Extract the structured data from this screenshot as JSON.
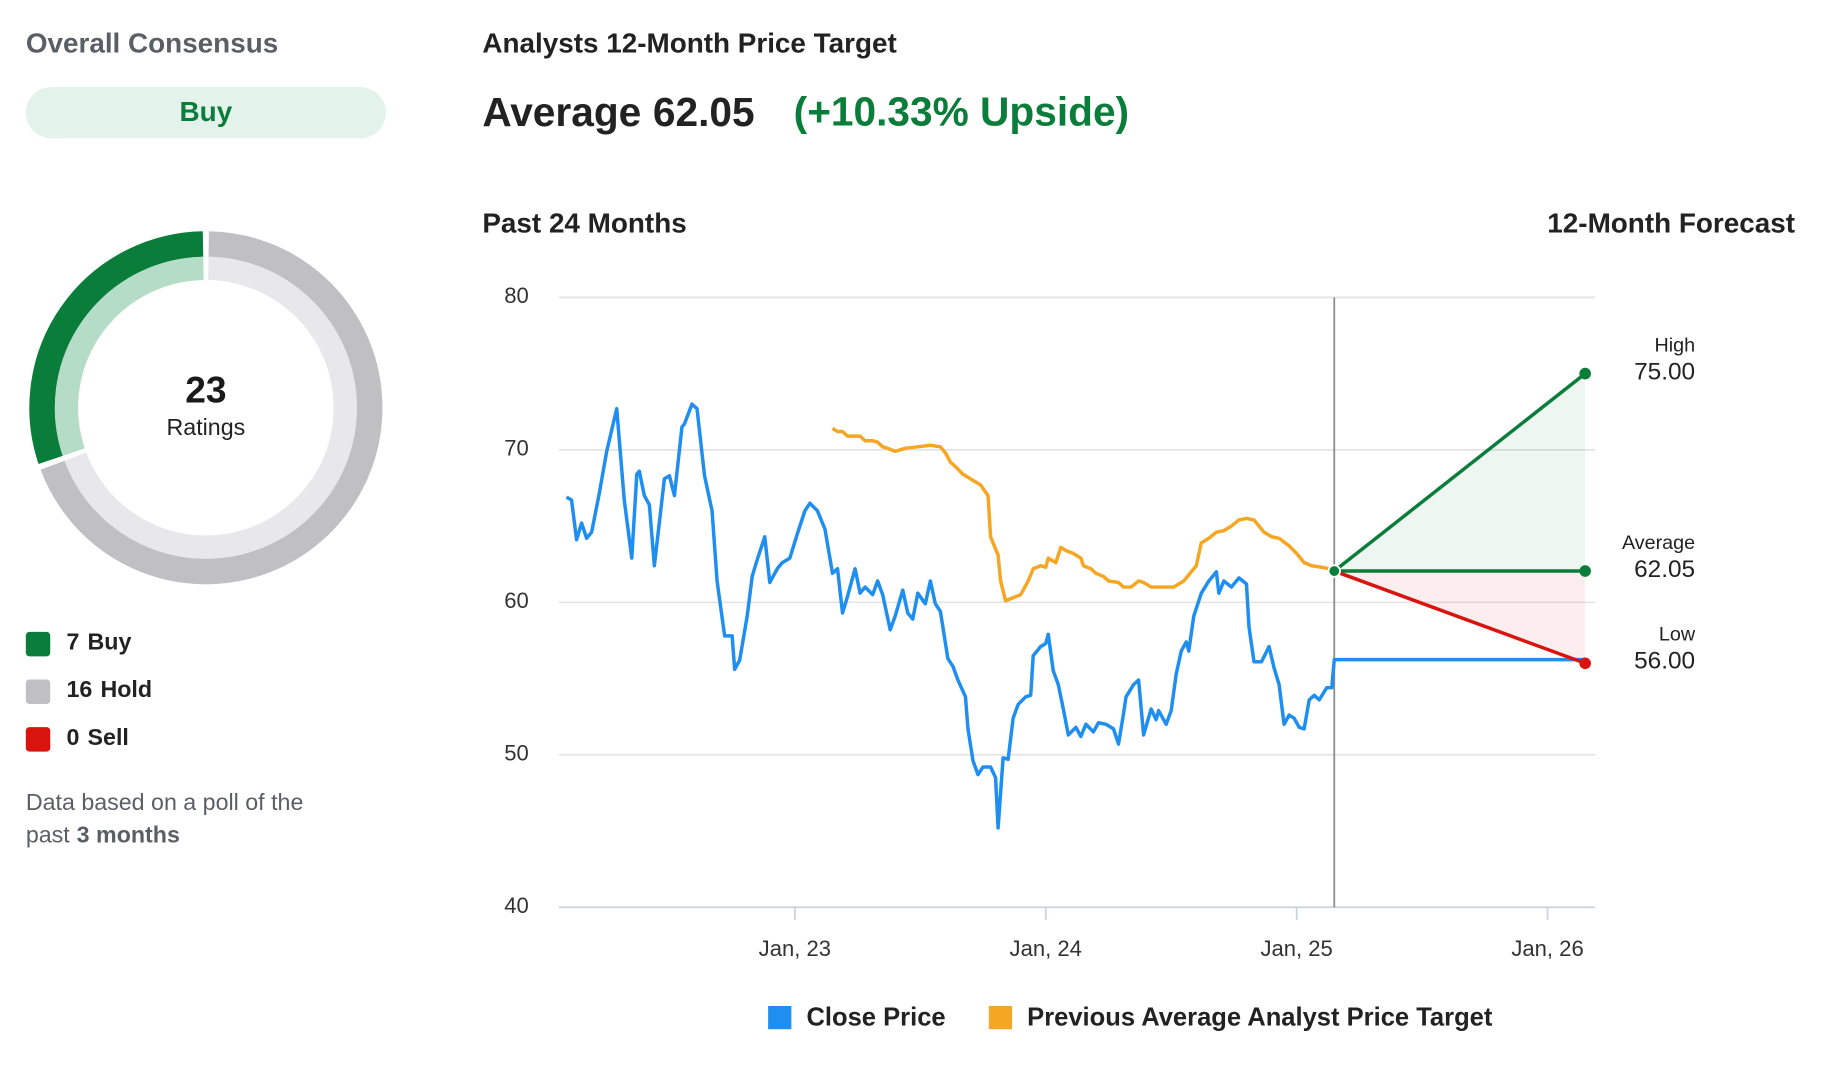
{
  "consensus": {
    "title": "Overall Consensus",
    "rating": "Buy",
    "total": 23,
    "total_label": "Ratings",
    "breakdown": [
      {
        "label": "Buy",
        "count": 7,
        "color": "#0b7d3b",
        "light": "#b5dcc6"
      },
      {
        "label": "Hold",
        "count": 16,
        "color": "#c0c0c3",
        "light": "#e8e8ea"
      },
      {
        "label": "Sell",
        "count": 0,
        "color": "#d9140e",
        "light": "#f5c0bd"
      }
    ],
    "note": [
      "Data based on a poll of the",
      "past"
    ],
    "note_period": "3 months"
  },
  "header": {
    "title": "Analysts 12-Month Price Target",
    "average_label": "Average",
    "average": 62.05,
    "upside": "(+10.33% Upside)"
  },
  "chart_data": {
    "type": "line",
    "left_label": "Past 24 Months",
    "right_label": "12-Month Forecast",
    "xlim": [
      2022.06,
      2026.19
    ],
    "ylim": [
      40,
      80
    ],
    "yticks": [
      40,
      50,
      60,
      70,
      80
    ],
    "grid": true,
    "xticks": [
      {
        "value": 2023,
        "label": "Jan, 23"
      },
      {
        "value": 2024,
        "label": "Jan, 24"
      },
      {
        "value": 2025,
        "label": "Jan, 25"
      },
      {
        "value": 2026,
        "label": "Jan, 26"
      }
    ],
    "series": [
      {
        "name": "Close Price",
        "color": "#1f8ef1",
        "x": [
          2022.09,
          2022.11,
          2022.13,
          2022.15,
          2022.17,
          2022.19,
          2022.22,
          2022.25,
          2022.29,
          2022.32,
          2022.35,
          2022.37,
          2022.38,
          2022.4,
          2022.42,
          2022.44,
          2022.48,
          2022.5,
          2022.52,
          2022.55,
          2022.56,
          2022.59,
          2022.61,
          2022.64,
          2022.67,
          2022.69,
          2022.72,
          2022.75,
          2022.76,
          2022.78,
          2022.81,
          2022.83,
          2022.85,
          2022.88,
          2022.9,
          2022.93,
          2022.95,
          2022.98,
          2023.01,
          2023.04,
          2023.06,
          2023.09,
          2023.12,
          2023.15,
          2023.17,
          2023.19,
          2023.21,
          2023.24,
          2023.26,
          2023.28,
          2023.31,
          2023.33,
          2023.35,
          2023.38,
          2023.4,
          2023.43,
          2023.45,
          2023.47,
          2023.49,
          2023.52,
          2023.54,
          2023.56,
          2023.58,
          2023.61,
          2023.63,
          2023.65,
          2023.68,
          2023.69,
          2023.71,
          2023.73,
          2023.75,
          2023.78,
          2023.8,
          2023.81,
          2023.83,
          2023.85,
          2023.87,
          2023.89,
          2023.92,
          2023.94,
          2023.95,
          2023.98,
          2024.0,
          2024.01,
          2024.03,
          2024.05,
          2024.07,
          2024.09,
          2024.12,
          2024.14,
          2024.16,
          2024.19,
          2024.21,
          2024.24,
          2024.27,
          2024.29,
          2024.31,
          2024.32,
          2024.35,
          2024.37,
          2024.39,
          2024.42,
          2024.44,
          2024.45,
          2024.48,
          2024.5,
          2024.52,
          2024.54,
          2024.56,
          2024.57,
          2024.59,
          2024.62,
          2024.65,
          2024.68,
          2024.69,
          2024.71,
          2024.74,
          2024.77,
          2024.8,
          2024.81,
          2024.83,
          2024.86,
          2024.89,
          2024.91,
          2024.93,
          2024.95,
          2024.97,
          2024.99,
          2025.01,
          2025.03,
          2025.05,
          2025.07,
          2025.09,
          2025.12,
          2025.14,
          2025.15,
          2026.15
        ],
        "values": [
          66.9,
          66.7,
          64.1,
          65.2,
          64.2,
          64.6,
          67.1,
          69.9,
          72.7,
          66.7,
          62.9,
          68.4,
          68.6,
          67.0,
          66.4,
          62.4,
          68.1,
          68.3,
          67.0,
          71.5,
          71.7,
          73.0,
          72.7,
          68.3,
          66.0,
          61.4,
          57.8,
          57.8,
          55.6,
          56.2,
          59.1,
          61.7,
          62.8,
          64.3,
          61.3,
          62.2,
          62.6,
          62.9,
          64.5,
          66.0,
          66.5,
          66.0,
          64.8,
          61.9,
          62.2,
          59.3,
          60.4,
          62.2,
          60.6,
          61.0,
          60.5,
          61.4,
          60.5,
          58.2,
          59.1,
          60.8,
          59.3,
          58.9,
          60.6,
          59.9,
          61.4,
          59.9,
          59.4,
          56.3,
          55.8,
          54.9,
          53.8,
          51.7,
          49.6,
          48.7,
          49.2,
          49.2,
          48.5,
          45.2,
          49.8,
          49.7,
          52.4,
          53.3,
          53.8,
          53.9,
          56.5,
          57.1,
          57.3,
          57.9,
          55.5,
          54.6,
          53.0,
          51.3,
          51.8,
          51.2,
          52.0,
          51.5,
          52.1,
          52.0,
          51.7,
          50.7,
          52.7,
          53.8,
          54.6,
          54.9,
          51.3,
          53.0,
          52.3,
          52.9,
          52.0,
          52.9,
          55.3,
          56.8,
          57.4,
          56.8,
          59.1,
          60.6,
          61.4,
          62.0,
          60.6,
          61.4,
          61.0,
          61.6,
          61.2,
          58.4,
          56.1,
          56.1,
          57.1,
          55.7,
          54.6,
          52.0,
          52.6,
          52.4,
          51.8,
          51.7,
          53.6,
          53.9,
          53.6,
          54.4,
          54.4,
          56.24,
          56.24
        ]
      },
      {
        "name": "Previous Average Analyst Price Target",
        "color": "#f5a623",
        "x": [
          2023.15,
          2023.17,
          2023.19,
          2023.21,
          2023.24,
          2023.26,
          2023.28,
          2023.31,
          2023.33,
          2023.35,
          2023.37,
          2023.4,
          2023.42,
          2023.44,
          2023.49,
          2023.54,
          2023.58,
          2023.6,
          2023.62,
          2023.64,
          2023.67,
          2023.69,
          2023.71,
          2023.74,
          2023.77,
          2023.78,
          2023.81,
          2023.82,
          2023.84,
          2023.87,
          2023.9,
          2023.93,
          2023.95,
          2023.98,
          2024.0,
          2024.01,
          2024.04,
          2024.06,
          2024.08,
          2024.11,
          2024.14,
          2024.15,
          2024.18,
          2024.2,
          2024.23,
          2024.25,
          2024.29,
          2024.31,
          2024.34,
          2024.37,
          2024.39,
          2024.42,
          2024.46,
          2024.51,
          2024.55,
          2024.57,
          2024.6,
          2024.62,
          2024.65,
          2024.68,
          2024.71,
          2024.74,
          2024.77,
          2024.8,
          2024.83,
          2024.87,
          2024.9,
          2024.93,
          2024.97,
          2025.0,
          2025.03,
          2025.06,
          2025.1,
          2025.13,
          2025.15
        ],
        "values": [
          71.4,
          71.2,
          71.2,
          70.9,
          70.9,
          70.9,
          70.6,
          70.6,
          70.5,
          70.2,
          70.1,
          69.9,
          70.0,
          70.1,
          70.2,
          70.3,
          70.2,
          69.8,
          69.2,
          68.9,
          68.4,
          68.2,
          68.0,
          67.7,
          67.0,
          64.3,
          63.1,
          61.4,
          60.1,
          60.3,
          60.5,
          61.4,
          62.2,
          62.4,
          62.3,
          62.9,
          62.6,
          63.6,
          63.4,
          63.2,
          62.9,
          62.4,
          62.2,
          61.9,
          61.7,
          61.4,
          61.3,
          61.0,
          61.0,
          61.4,
          61.3,
          61.0,
          61.0,
          61.0,
          61.4,
          61.8,
          62.4,
          63.9,
          64.2,
          64.6,
          64.7,
          65.0,
          65.4,
          65.5,
          65.4,
          64.6,
          64.3,
          64.2,
          63.7,
          63.2,
          62.6,
          62.4,
          62.3,
          62.2,
          62.05
        ]
      }
    ],
    "forecast": {
      "x": [
        2025.15,
        2026.15
      ],
      "start": 62.05,
      "targets": [
        {
          "name": "High",
          "value": 75,
          "value_label": "75.00",
          "color": "#0b7d3b"
        },
        {
          "name": "Average",
          "value": 62.05,
          "value_label": "62.05",
          "color": "#0b7d3b"
        },
        {
          "name": "Low",
          "value": 56,
          "value_label": "56.00",
          "color": "#d9140e"
        }
      ]
    }
  }
}
